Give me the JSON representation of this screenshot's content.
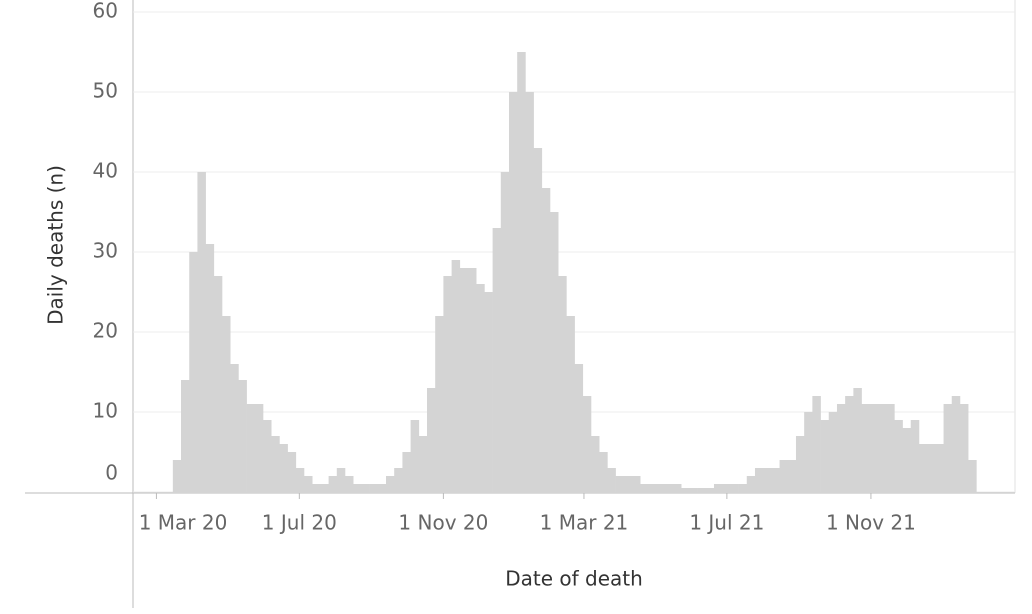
{
  "chart_data": {
    "type": "bar",
    "x_label": "Date of death",
    "y_label": "Daily deaths (n)",
    "color": "#d4d4d4",
    "grid": true,
    "xlim": [
      "2020-02-10",
      "2022-03-04"
    ],
    "xticks": [
      {
        "value": "2020-03-01",
        "label": "1 Mar 20"
      },
      {
        "value": "2020-07-01",
        "label": "1 Jul 20"
      },
      {
        "value": "2020-11-01",
        "label": "1 Nov 20"
      },
      {
        "value": "2021-03-01",
        "label": "1 Mar 21"
      },
      {
        "value": "2021-07-01",
        "label": "1 Jul 21"
      },
      {
        "value": "2021-11-01",
        "label": "1 Nov 21"
      }
    ],
    "ylim": [
      0,
      60
    ],
    "yticks": [
      0,
      10,
      20,
      30,
      40,
      50,
      60
    ],
    "x": [
      "2020-03-15",
      "2020-03-22",
      "2020-03-29",
      "2020-04-05",
      "2020-04-12",
      "2020-04-19",
      "2020-04-26",
      "2020-05-03",
      "2020-05-10",
      "2020-05-17",
      "2020-05-24",
      "2020-05-31",
      "2020-06-07",
      "2020-06-14",
      "2020-06-21",
      "2020-06-28",
      "2020-07-05",
      "2020-07-12",
      "2020-07-19",
      "2020-07-26",
      "2020-08-02",
      "2020-08-09",
      "2020-08-16",
      "2020-08-23",
      "2020-08-30",
      "2020-09-06",
      "2020-09-13",
      "2020-09-20",
      "2020-09-27",
      "2020-10-04",
      "2020-10-11",
      "2020-10-18",
      "2020-10-25",
      "2020-11-01",
      "2020-11-08",
      "2020-11-15",
      "2020-11-22",
      "2020-11-29",
      "2020-12-06",
      "2020-12-13",
      "2020-12-20",
      "2020-12-27",
      "2021-01-03",
      "2021-01-10",
      "2021-01-17",
      "2021-01-24",
      "2021-01-31",
      "2021-02-07",
      "2021-02-14",
      "2021-02-21",
      "2021-02-28",
      "2021-03-07",
      "2021-03-14",
      "2021-03-21",
      "2021-03-28",
      "2021-04-04",
      "2021-04-11",
      "2021-04-18",
      "2021-04-25",
      "2021-05-02",
      "2021-05-09",
      "2021-05-16",
      "2021-05-23",
      "2021-05-30",
      "2021-06-06",
      "2021-06-13",
      "2021-06-20",
      "2021-06-27",
      "2021-07-04",
      "2021-07-11",
      "2021-07-18",
      "2021-07-25",
      "2021-08-01",
      "2021-08-08",
      "2021-08-15",
      "2021-08-22",
      "2021-08-29",
      "2021-09-05",
      "2021-09-12",
      "2021-09-19",
      "2021-09-26",
      "2021-10-03",
      "2021-10-10",
      "2021-10-17",
      "2021-10-24",
      "2021-10-31",
      "2021-11-07",
      "2021-11-14",
      "2021-11-21",
      "2021-11-28",
      "2021-12-05",
      "2021-12-12",
      "2021-12-19",
      "2021-12-26",
      "2022-01-02",
      "2022-01-09",
      "2022-01-16",
      "2022-01-23"
    ],
    "values": [
      4,
      14,
      30,
      40,
      31,
      27,
      22,
      16,
      14,
      11,
      11,
      9,
      7,
      6,
      5,
      3,
      2,
      1,
      1,
      2,
      3,
      2,
      1,
      1,
      1,
      1,
      2,
      3,
      5,
      9,
      7,
      13,
      22,
      27,
      29,
      28,
      28,
      26,
      25,
      33,
      40,
      50,
      55,
      50,
      43,
      38,
      35,
      27,
      22,
      16,
      12,
      7,
      5,
      3,
      2,
      2,
      2,
      1,
      1,
      1,
      1,
      1,
      0.5,
      0.5,
      0.5,
      0.5,
      1,
      1,
      1,
      1,
      2,
      3,
      3,
      3,
      4,
      4,
      7,
      10,
      12,
      9,
      10,
      11,
      12,
      13,
      11,
      11,
      11,
      11,
      9,
      8,
      9,
      6,
      6,
      6,
      11,
      12,
      11,
      4
    ]
  }
}
